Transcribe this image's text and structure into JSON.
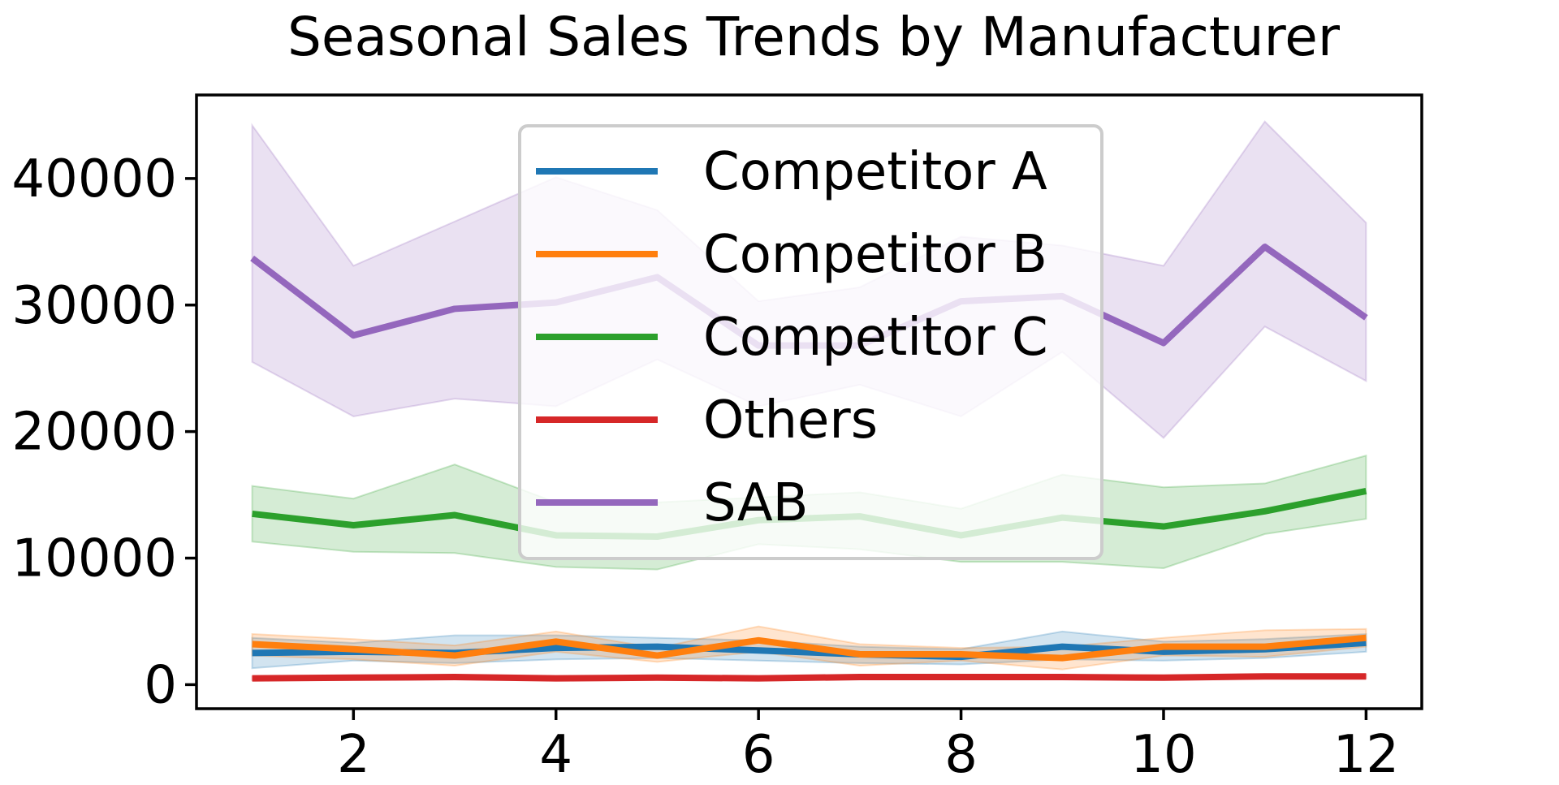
{
  "chart_data": {
    "type": "line",
    "title": "Seasonal Sales Trends by Manufacturer",
    "xlabel": "",
    "ylabel": "",
    "x": [
      1,
      2,
      3,
      4,
      5,
      6,
      7,
      8,
      9,
      10,
      11,
      12
    ],
    "xticks": [
      2,
      4,
      6,
      8,
      10,
      12
    ],
    "xlim": [
      0.45,
      12.55
    ],
    "yticks": [
      0,
      10000,
      20000,
      30000,
      40000
    ],
    "ytick_labels": [
      "0",
      "10000",
      "20000",
      "30000",
      "40000"
    ],
    "ylim": [
      -1900,
      46600
    ],
    "grid": false,
    "legend_position": "top-center",
    "series": [
      {
        "name": "Competitor A",
        "color": "#1f77b4",
        "values": [
          2500,
          2600,
          2500,
          2900,
          3000,
          2700,
          2400,
          2200,
          3000,
          2600,
          2800,
          3300
        ],
        "lower": [
          1300,
          1900,
          1700,
          2000,
          2100,
          1900,
          1700,
          1600,
          2000,
          1900,
          2100,
          2600
        ],
        "upper": [
          3700,
          3300,
          3900,
          3900,
          3700,
          3500,
          3000,
          2800,
          4200,
          3400,
          3600,
          4000
        ]
      },
      {
        "name": "Competitor B",
        "color": "#ff7f0e",
        "values": [
          3200,
          2800,
          2300,
          3400,
          2300,
          3500,
          2400,
          2400,
          2100,
          3000,
          3000,
          3700
        ],
        "lower": [
          2300,
          2000,
          1500,
          2600,
          1800,
          2600,
          1500,
          1900,
          1200,
          2300,
          2200,
          3000
        ],
        "upper": [
          4000,
          3600,
          3100,
          4200,
          2900,
          4600,
          3200,
          2900,
          3000,
          3700,
          4300,
          4400
        ]
      },
      {
        "name": "Competitor C",
        "color": "#2ca02c",
        "values": [
          13500,
          12600,
          13400,
          11800,
          11700,
          13000,
          13300,
          11800,
          13200,
          12500,
          13700,
          15300
        ],
        "lower": [
          11300,
          10500,
          10400,
          9300,
          9100,
          11100,
          10700,
          9700,
          9700,
          9200,
          11900,
          13100
        ],
        "upper": [
          15700,
          14700,
          17400,
          14400,
          14400,
          14800,
          15200,
          13900,
          16600,
          15600,
          15900,
          18100
        ]
      },
      {
        "name": "Others",
        "color": "#d62728",
        "values": [
          500,
          550,
          600,
          500,
          550,
          500,
          600,
          600,
          600,
          550,
          650,
          650
        ],
        "lower": [
          350,
          400,
          450,
          350,
          400,
          350,
          450,
          450,
          450,
          400,
          500,
          500
        ],
        "upper": [
          650,
          700,
          750,
          650,
          700,
          650,
          750,
          750,
          750,
          700,
          800,
          800
        ]
      },
      {
        "name": "SAB",
        "color": "#9467bd",
        "values": [
          33700,
          27600,
          29700,
          30200,
          32200,
          26800,
          26800,
          30300,
          30700,
          27000,
          34600,
          29000
        ],
        "lower": [
          25500,
          21200,
          22600,
          22000,
          25700,
          22000,
          23700,
          21200,
          26300,
          19500,
          28300,
          24000
        ],
        "upper": [
          44200,
          33100,
          36600,
          40100,
          37500,
          30300,
          31400,
          35400,
          34700,
          33100,
          44500,
          36500
        ]
      }
    ]
  }
}
